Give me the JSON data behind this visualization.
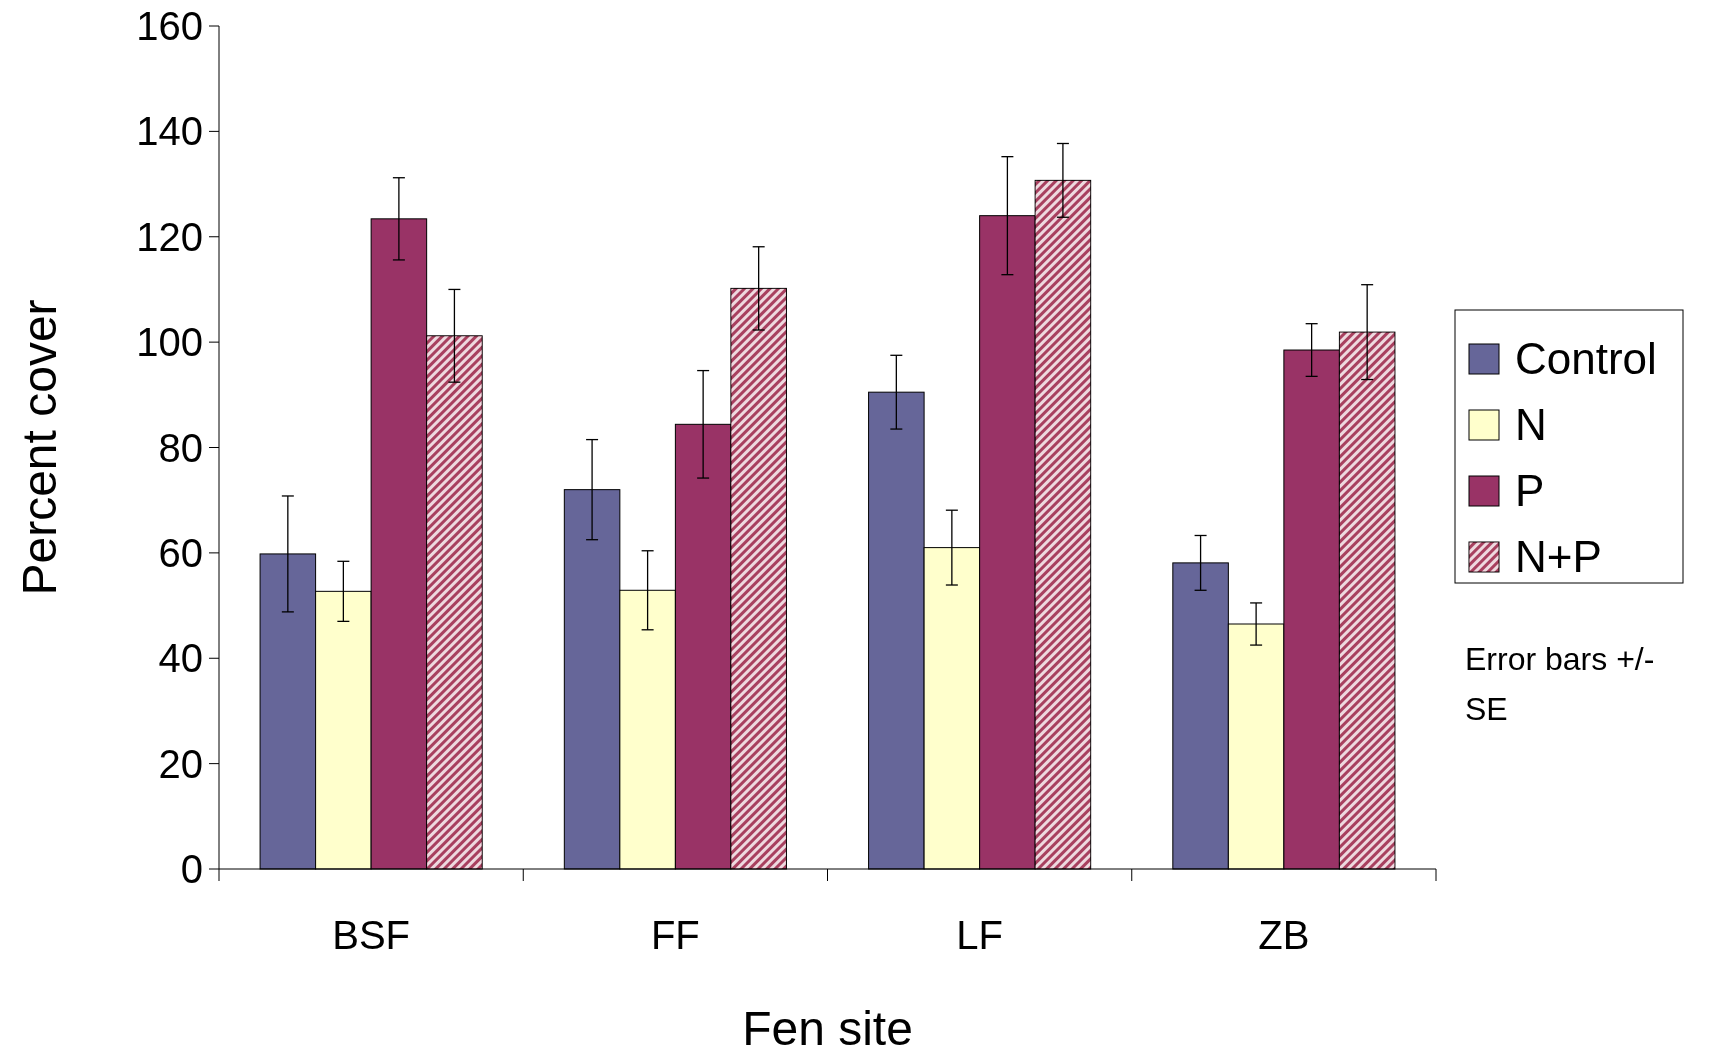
{
  "chart_data": {
    "type": "bar",
    "xlabel": "Fen site",
    "ylabel": "Percent cover",
    "categories": [
      "BSF",
      "FF",
      "LF",
      "ZB"
    ],
    "series": [
      {
        "name": "Control",
        "color": "#666699",
        "values": [
          59.8,
          72,
          90.5,
          58.1
        ],
        "errors": [
          11,
          9.5,
          7,
          5.2
        ]
      },
      {
        "name": "N",
        "color": "#ffffcc",
        "values": [
          52.7,
          52.9,
          61,
          46.5
        ],
        "errors": [
          5.7,
          7.5,
          7.1,
          4
        ]
      },
      {
        "name": "P",
        "color": "#993366",
        "values": [
          123.4,
          84.4,
          124,
          98.5
        ],
        "errors": [
          7.8,
          10.2,
          11.2,
          5
        ]
      },
      {
        "name": "N+P",
        "color": "#a8405f",
        "values": [
          101.2,
          110.2,
          130.7,
          101.9
        ],
        "errors": [
          8.8,
          7.9,
          7,
          9
        ]
      }
    ],
    "ylim": [
      0,
      160
    ],
    "yticks": [
      0,
      20,
      40,
      60,
      80,
      100,
      120,
      140,
      160
    ],
    "grid": false,
    "legend": "right",
    "annotations": [
      "Error bars +/- SE"
    ]
  }
}
